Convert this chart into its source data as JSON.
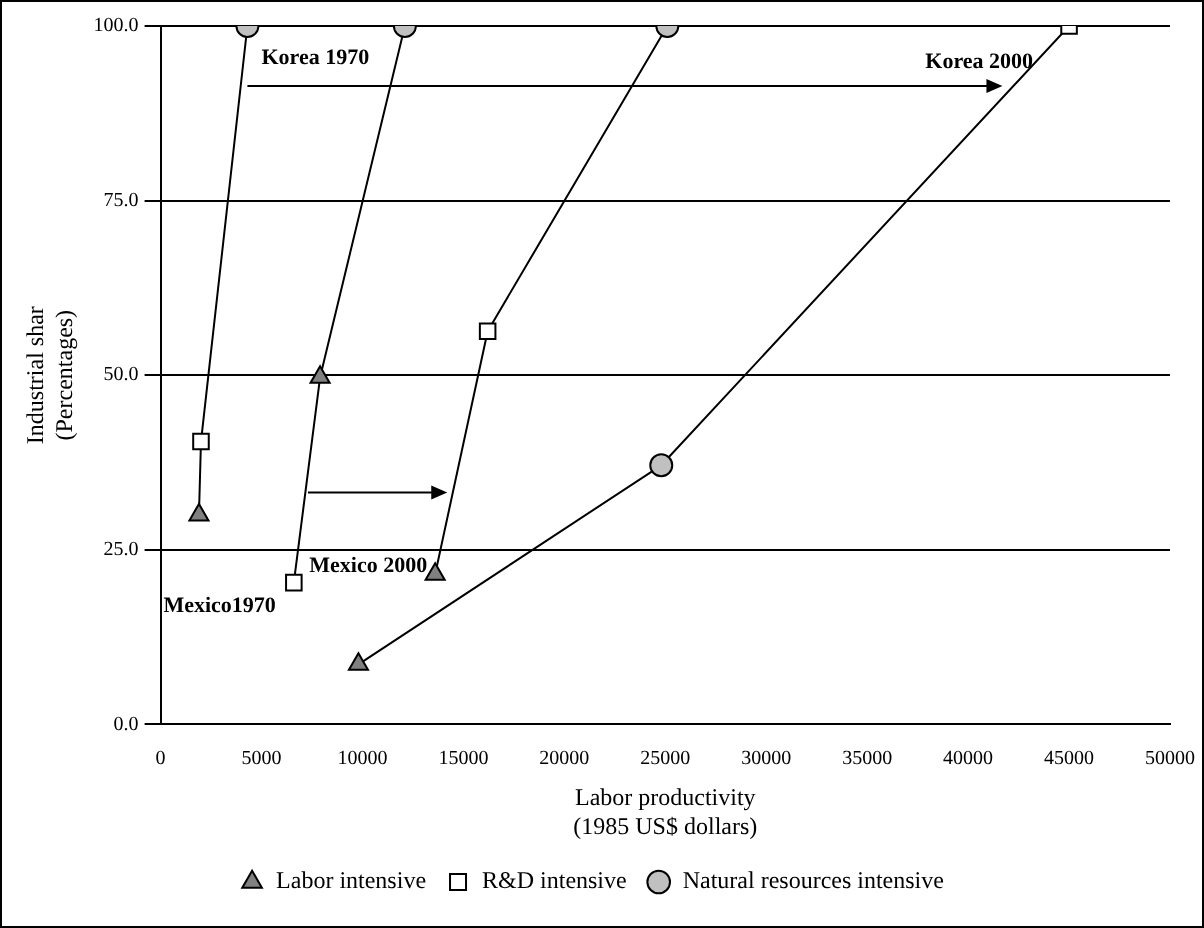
{
  "chart_data": {
    "type": "line",
    "xlabel": "Labor productivity\n(1985 US$ dollars)",
    "ylabel": "Industrial shar\n(Percentages)",
    "xlim": [
      0,
      50000
    ],
    "xticks": [
      0,
      5000,
      10000,
      15000,
      20000,
      25000,
      30000,
      35000,
      40000,
      45000,
      50000
    ],
    "ylim": [
      0,
      100
    ],
    "yticks": [
      {
        "value": 0,
        "label": "0.0"
      },
      {
        "value": 25,
        "label": "25.0"
      },
      {
        "value": 50,
        "label": "50.0"
      },
      {
        "value": 75,
        "label": "75.0"
      },
      {
        "value": 100,
        "label": "100.0"
      }
    ],
    "grid": "y",
    "legend": "bottom",
    "series": [
      {
        "name": "Korea 1970",
        "type": "line",
        "marker": "none",
        "color": "#000000",
        "x": [
          1900,
          2000,
          4300
        ],
        "values": [
          30,
          40.5,
          100
        ]
      },
      {
        "name": "Mexico1970",
        "type": "line",
        "marker": "none",
        "color": "#000000",
        "x": [
          6600,
          7900,
          12100
        ],
        "values": [
          20.3,
          49.7,
          100
        ]
      },
      {
        "name": "Mexico 2000",
        "type": "line",
        "marker": "none",
        "color": "#000000",
        "x": [
          13600,
          16200,
          25100
        ],
        "values": [
          21.5,
          56.3,
          100
        ]
      },
      {
        "name": "Korea 2000",
        "type": "line",
        "marker": "none",
        "color": "#000000",
        "x": [
          9800,
          24800,
          45000
        ],
        "values": [
          8.6,
          37.1,
          100
        ]
      },
      {
        "name": "Labor intensive",
        "type": "scatter",
        "marker": "triangle",
        "color": "#808080",
        "x": [
          1900,
          7900,
          13600,
          9800
        ],
        "values": [
          30,
          49.7,
          21.5,
          8.6
        ]
      },
      {
        "name": "R&D intensive",
        "type": "scatter",
        "marker": "square",
        "color": "#ffffff",
        "x": [
          2000,
          6600,
          16200,
          45000
        ],
        "values": [
          40.5,
          20.3,
          56.3,
          100
        ]
      },
      {
        "name": "Natural resources intensive",
        "type": "scatter",
        "marker": "circle",
        "color": "#c0c0c0",
        "x": [
          4300,
          12100,
          25100,
          24800
        ],
        "values": [
          100,
          100,
          100,
          37.1
        ]
      }
    ]
  }
}
